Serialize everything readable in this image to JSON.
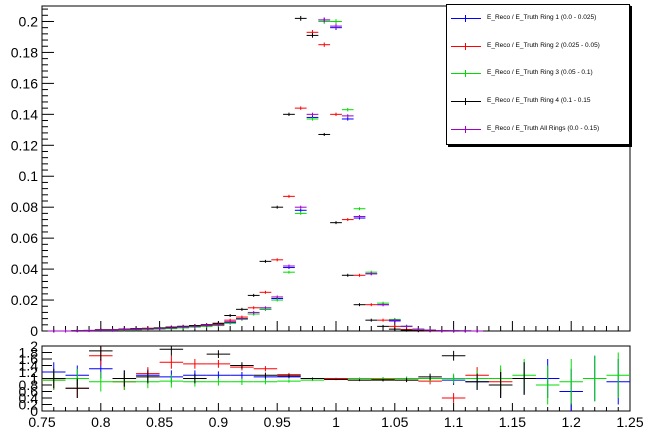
{
  "chart_data": [
    {
      "type": "scatter",
      "xlim": [
        0.75,
        1.25
      ],
      "ylim": [
        0,
        0.21
      ],
      "yticks": [
        "0",
        "0.02",
        "0.04",
        "0.06",
        "0.08",
        "0.1",
        "0.12",
        "0.14",
        "0.16",
        "0.18",
        "0.2"
      ],
      "ytick_values": [
        0,
        0.02,
        0.04,
        0.06,
        0.08,
        0.1,
        0.12,
        0.14,
        0.16,
        0.18,
        0.2
      ],
      "grid": false,
      "legend_position": "top-right",
      "series": [
        {
          "name": "E_Reco / E_Truth Ring 1 (0.0 - 0.025)",
          "color": "#0000ff",
          "x": [
            0.76,
            0.77,
            0.78,
            0.79,
            0.8,
            0.81,
            0.82,
            0.83,
            0.84,
            0.85,
            0.86,
            0.87,
            0.88,
            0.89,
            0.9,
            0.91,
            0.92,
            0.93,
            0.94,
            0.95,
            0.96,
            0.97,
            0.98,
            0.99,
            1.0,
            1.01,
            1.02,
            1.03,
            1.04,
            1.05,
            1.06,
            1.07,
            1.08,
            1.09,
            1.1,
            1.11,
            1.12
          ],
          "y": [
            0,
            0,
            0.0003,
            0.0003,
            0.0005,
            0.0005,
            0.001,
            0.001,
            0.0013,
            0.0015,
            0.002,
            0.0025,
            0.003,
            0.0035,
            0.004,
            0.0055,
            0.008,
            0.011,
            0.014,
            0.021,
            0.041,
            0.078,
            0.138,
            0.201,
            0.196,
            0.137,
            0.073,
            0.037,
            0.017,
            0.0065,
            0.003,
            0.0012,
            0.0006,
            0.0003,
            0.0002,
            0.0001,
            0
          ]
        },
        {
          "name": "E_Reco / E_Truth Ring 2 (0.025 - 0.05)",
          "color": "#ff0000",
          "x": [
            0.76,
            0.77,
            0.78,
            0.79,
            0.8,
            0.81,
            0.82,
            0.83,
            0.84,
            0.85,
            0.86,
            0.87,
            0.88,
            0.89,
            0.9,
            0.91,
            0.92,
            0.93,
            0.94,
            0.95,
            0.96,
            0.97,
            0.98,
            0.99,
            1.0,
            1.01,
            1.02,
            1.03,
            1.04,
            1.05,
            1.06,
            1.07,
            1.08,
            1.09,
            1.1,
            1.11,
            1.12
          ],
          "y": [
            0,
            0,
            0.0003,
            0.0003,
            0.0008,
            0.0008,
            0.0012,
            0.0012,
            0.0018,
            0.0018,
            0.0025,
            0.003,
            0.0035,
            0.004,
            0.0045,
            0.007,
            0.009,
            0.015,
            0.025,
            0.046,
            0.087,
            0.144,
            0.193,
            0.185,
            0.14,
            0.072,
            0.036,
            0.017,
            0.007,
            0.003,
            0.001,
            0.0004,
            0.0002,
            0.0001,
            0,
            0,
            0
          ]
        },
        {
          "name": "E_Reco / E_Truth Ring 3 (0.05 - 0.1)",
          "color": "#00dd00",
          "x": [
            0.76,
            0.77,
            0.78,
            0.79,
            0.8,
            0.81,
            0.82,
            0.83,
            0.84,
            0.85,
            0.86,
            0.87,
            0.88,
            0.89,
            0.9,
            0.91,
            0.92,
            0.93,
            0.94,
            0.95,
            0.96,
            0.97,
            0.98,
            0.99,
            1.0,
            1.01,
            1.02,
            1.03,
            1.04,
            1.05,
            1.06,
            1.07,
            1.08,
            1.09,
            1.1,
            1.11,
            1.12
          ],
          "y": [
            0,
            0,
            0.0003,
            0.0003,
            0.0005,
            0.0005,
            0.0008,
            0.0008,
            0.001,
            0.0012,
            0.0015,
            0.002,
            0.0025,
            0.003,
            0.0035,
            0.005,
            0.0075,
            0.011,
            0.014,
            0.02,
            0.038,
            0.076,
            0.137,
            0.2,
            0.2,
            0.143,
            0.079,
            0.038,
            0.018,
            0.0075,
            0.003,
            0.0012,
            0.0006,
            0.0003,
            0.0002,
            0.0001,
            0
          ]
        },
        {
          "name": "E_Reco / E_Truth Ring 4 (0.1 - 0.15",
          "color": "#000000",
          "x": [
            0.76,
            0.77,
            0.78,
            0.79,
            0.8,
            0.81,
            0.82,
            0.83,
            0.84,
            0.85,
            0.86,
            0.87,
            0.88,
            0.89,
            0.9,
            0.91,
            0.92,
            0.93,
            0.94,
            0.95,
            0.96,
            0.97,
            0.98,
            0.99,
            1.0,
            1.01,
            1.02,
            1.03,
            1.04,
            1.05,
            1.06,
            1.07,
            1.08,
            1.09,
            1.1,
            1.11,
            1.12
          ],
          "y": [
            0,
            0,
            0.0002,
            0.0004,
            0.0008,
            0.0008,
            0.0012,
            0.0015,
            0.0015,
            0.002,
            0.0025,
            0.003,
            0.0035,
            0.004,
            0.005,
            0.01,
            0.014,
            0.023,
            0.045,
            0.08,
            0.14,
            0.202,
            0.191,
            0.127,
            0.07,
            0.036,
            0.017,
            0.007,
            0.003,
            0.0012,
            0.0005,
            0.0002,
            0.0002,
            0.0001,
            0,
            0,
            0
          ]
        },
        {
          "name": "E_Reco / E_Truth All Rings (0.0 - 0.15)",
          "color": "#a000c8",
          "x": [
            0.76,
            0.77,
            0.78,
            0.79,
            0.8,
            0.81,
            0.82,
            0.83,
            0.84,
            0.85,
            0.86,
            0.87,
            0.88,
            0.89,
            0.9,
            0.91,
            0.92,
            0.93,
            0.94,
            0.95,
            0.96,
            0.97,
            0.98,
            0.99,
            1.0,
            1.01,
            1.02,
            1.03,
            1.04,
            1.05,
            1.06,
            1.07,
            1.08,
            1.09,
            1.1,
            1.11,
            1.12
          ],
          "y": [
            0,
            0,
            0.0003,
            0.0003,
            0.0006,
            0.0006,
            0.001,
            0.001,
            0.0014,
            0.0016,
            0.002,
            0.0027,
            0.003,
            0.0035,
            0.004,
            0.006,
            0.008,
            0.012,
            0.015,
            0.022,
            0.042,
            0.08,
            0.14,
            0.201,
            0.197,
            0.139,
            0.074,
            0.037,
            0.017,
            0.007,
            0.003,
            0.0012,
            0.0006,
            0.0003,
            0.0002,
            0.0001,
            0
          ]
        }
      ]
    },
    {
      "type": "scatter",
      "xlim": [
        0.75,
        1.25
      ],
      "ylim": [
        0,
        2
      ],
      "xticks": [
        "0.75",
        "0.8",
        "0.85",
        "0.9",
        "0.95",
        "1",
        "1.05",
        "1.1",
        "1.15",
        "1.2",
        "1.25"
      ],
      "xtick_values": [
        0.75,
        0.8,
        0.85,
        0.9,
        0.95,
        1.0,
        1.05,
        1.1,
        1.15,
        1.2,
        1.25
      ],
      "yticks": [
        "0",
        "0.2",
        "0.4",
        "0.6",
        "0.8",
        "1",
        "1.2",
        "1.4",
        "1.6",
        "1.8",
        "2"
      ],
      "ytick_values": [
        0,
        0.2,
        0.4,
        0.6,
        0.8,
        1.0,
        1.2,
        1.4,
        1.6,
        1.8,
        2.0
      ],
      "grid": false,
      "series": [
        {
          "color": "#0000ff",
          "x": [
            0.76,
            0.78,
            0.8,
            0.82,
            0.84,
            0.86,
            0.88,
            0.9,
            0.92,
            0.94,
            0.96,
            0.98,
            1.0,
            1.02,
            1.04,
            1.06,
            1.08,
            1.1,
            1.12,
            1.14,
            1.16,
            1.18,
            1.2,
            1.22,
            1.24
          ],
          "y": [
            1.2,
            1.1,
            1.3,
            1.0,
            1.1,
            1.05,
            1.1,
            1.1,
            1.1,
            1.05,
            1.05,
            1.0,
            1.0,
            1.0,
            1.0,
            1.0,
            1.0,
            0.95,
            0.9,
            0.8,
            1.0,
            1.0,
            0.6,
            1.0,
            0.9
          ],
          "yerr": [
            0.3,
            0.3,
            0.3,
            0.25,
            0.2,
            0.2,
            0.15,
            0.12,
            0.1,
            0.08,
            0.05,
            0.03,
            0.02,
            0.03,
            0.04,
            0.06,
            0.1,
            0.15,
            0.25,
            0.4,
            0.5,
            0.6,
            0.7,
            0.7,
            0.7
          ]
        },
        {
          "color": "#ff0000",
          "x": [
            0.76,
            0.78,
            0.8,
            0.82,
            0.84,
            0.86,
            0.88,
            0.9,
            0.92,
            0.94,
            0.96,
            0.98,
            1.0,
            1.02,
            1.04,
            1.06,
            1.08,
            1.1,
            1.12,
            1.14
          ],
          "y": [
            0.95,
            0.7,
            1.7,
            0.9,
            1.15,
            1.5,
            1.45,
            1.45,
            1.35,
            1.3,
            1.12,
            1.0,
            1.0,
            0.95,
            0.97,
            0.95,
            0.92,
            0.4,
            1.1,
            0.9
          ],
          "yerr": [
            0.3,
            0.3,
            0.3,
            0.25,
            0.2,
            0.2,
            0.15,
            0.12,
            0.1,
            0.08,
            0.05,
            0.03,
            0.02,
            0.03,
            0.04,
            0.06,
            0.1,
            0.15,
            0.25,
            0.4
          ]
        },
        {
          "color": "#00dd00",
          "x": [
            0.76,
            0.78,
            0.8,
            0.82,
            0.84,
            0.86,
            0.88,
            0.9,
            0.92,
            0.94,
            0.96,
            0.98,
            1.0,
            1.02,
            1.04,
            1.06,
            1.08,
            1.1,
            1.12,
            1.14,
            1.16,
            1.18,
            1.2,
            1.22,
            1.24
          ],
          "y": [
            0.95,
            1.0,
            0.9,
            0.9,
            0.9,
            0.92,
            0.9,
            0.9,
            0.9,
            0.9,
            0.92,
            0.95,
            0.97,
            1.0,
            1.0,
            1.0,
            1.0,
            1.0,
            1.0,
            1.0,
            1.1,
            0.8,
            0.9,
            1.0,
            1.1
          ],
          "yerr": [
            0.3,
            0.3,
            0.3,
            0.25,
            0.2,
            0.2,
            0.15,
            0.12,
            0.1,
            0.08,
            0.05,
            0.03,
            0.02,
            0.03,
            0.04,
            0.06,
            0.1,
            0.15,
            0.25,
            0.4,
            0.5,
            0.6,
            0.7,
            0.7,
            0.7
          ]
        },
        {
          "color": "#000000",
          "x": [
            0.76,
            0.78,
            0.8,
            0.82,
            0.84,
            0.86,
            0.88,
            0.9,
            0.92,
            0.94,
            0.96,
            0.98,
            1.0,
            1.02,
            1.04,
            1.06,
            1.08,
            1.1,
            1.12,
            1.14,
            1.16
          ],
          "y": [
            1.0,
            0.7,
            1.85,
            1.0,
            1.05,
            1.9,
            1.0,
            1.75,
            1.4,
            1.1,
            1.08,
            1.0,
            0.97,
            0.95,
            0.95,
            0.95,
            1.05,
            1.7,
            0.9,
            0.8,
            1.0
          ],
          "yerr": [
            0.3,
            0.3,
            0.3,
            0.25,
            0.2,
            0.2,
            0.15,
            0.12,
            0.1,
            0.08,
            0.05,
            0.03,
            0.02,
            0.03,
            0.04,
            0.06,
            0.1,
            0.15,
            0.25,
            0.4,
            0.5
          ]
        }
      ]
    }
  ]
}
